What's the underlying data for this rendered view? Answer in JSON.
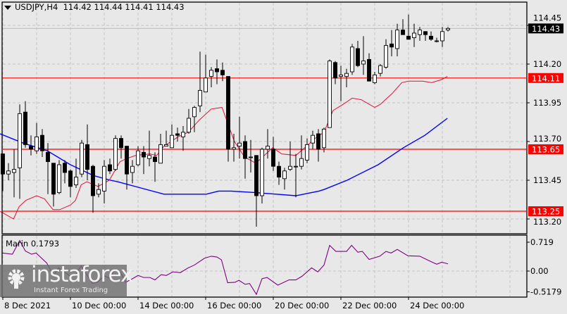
{
  "header": {
    "symbol": "USDJPY,H4",
    "open": "114.42",
    "high": "114.44",
    "low": "114.41",
    "close": "114.43"
  },
  "indicator": {
    "label": "Marin 0.1793"
  },
  "price_axis": {
    "ticks": [
      "114.45",
      "114.20",
      "113.95",
      "113.70",
      "113.45",
      "113.20"
    ],
    "tick_values": [
      114.45,
      114.2,
      113.95,
      113.7,
      113.45,
      113.2
    ],
    "current": {
      "label": "114.43",
      "value": 114.43,
      "color": "#000000"
    },
    "levels": [
      {
        "label": "114.11",
        "value": 114.11,
        "color": "#ff0000"
      },
      {
        "label": "113.65",
        "value": 113.65,
        "color": "#ff0000"
      },
      {
        "label": "113.25",
        "value": 113.25,
        "color": "#ff0000"
      }
    ]
  },
  "sub_axis": {
    "ticks": [
      "0.719",
      "0.00",
      "-0.5179"
    ],
    "tick_values": [
      0.719,
      0,
      -0.5179
    ]
  },
  "time_axis": {
    "labels": [
      "8 Dec 2021",
      "10 Dec 00:00",
      "14 Dec 00:00",
      "16 Dec 00:00",
      "20 Dec 00:00",
      "22 Dec 00:00",
      "24 Dec 00:00"
    ],
    "label_bars": [
      0,
      12,
      24,
      36,
      48,
      60,
      72
    ]
  },
  "watermark": {
    "brand": "instaforex",
    "tagline": "Instant Forex Trading"
  },
  "colors": {
    "background": "#e8e8e8",
    "fast_ma": "#e0103a",
    "slow_ma": "#0000ff",
    "marin": "#800080",
    "level": "#ff0000"
  },
  "chart_data": {
    "type": "candlestick",
    "title": "USDJPY,H4",
    "ylim": [
      113.12,
      114.56
    ],
    "candles": [
      [
        113.62,
        113.62,
        113.38,
        113.49
      ],
      [
        113.49,
        113.56,
        113.45,
        113.51
      ],
      [
        113.5,
        113.65,
        113.34,
        113.52
      ],
      [
        113.53,
        113.94,
        113.33,
        113.88
      ],
      [
        113.89,
        113.96,
        113.66,
        113.68
      ],
      [
        113.67,
        113.74,
        113.61,
        113.65
      ],
      [
        113.64,
        113.82,
        113.62,
        113.73
      ],
      [
        113.74,
        113.78,
        113.6,
        113.64
      ],
      [
        113.63,
        113.69,
        113.36,
        113.57
      ],
      [
        113.56,
        113.56,
        113.28,
        113.36
      ],
      [
        113.37,
        113.58,
        113.36,
        113.55
      ],
      [
        113.56,
        113.58,
        113.43,
        113.5
      ],
      [
        113.51,
        113.52,
        113.34,
        113.41
      ],
      [
        113.42,
        113.59,
        113.4,
        113.47
      ],
      [
        113.49,
        113.71,
        113.47,
        113.69
      ],
      [
        113.68,
        113.81,
        113.45,
        113.52
      ],
      [
        113.54,
        113.55,
        113.24,
        113.35
      ],
      [
        113.36,
        113.43,
        113.34,
        113.39
      ],
      [
        113.38,
        113.58,
        113.3,
        113.54
      ],
      [
        113.55,
        113.59,
        113.49,
        113.51
      ],
      [
        113.52,
        113.74,
        113.51,
        113.72
      ],
      [
        113.72,
        113.74,
        113.59,
        113.66
      ],
      [
        113.67,
        113.67,
        113.39,
        113.49
      ],
      [
        113.5,
        113.58,
        113.43,
        113.54
      ],
      [
        113.55,
        113.67,
        113.54,
        113.64
      ],
      [
        113.63,
        113.67,
        113.49,
        113.6
      ],
      [
        113.59,
        113.77,
        113.54,
        113.61
      ],
      [
        113.6,
        113.63,
        113.44,
        113.57
      ],
      [
        113.56,
        113.75,
        113.56,
        113.68
      ],
      [
        113.67,
        113.77,
        113.67,
        113.68
      ],
      [
        113.66,
        113.81,
        113.66,
        113.74
      ],
      [
        113.75,
        113.79,
        113.7,
        113.74
      ],
      [
        113.73,
        113.8,
        113.64,
        113.76
      ],
      [
        113.76,
        113.91,
        113.75,
        113.85
      ],
      [
        113.86,
        113.93,
        113.76,
        113.92
      ],
      [
        113.93,
        114.28,
        113.89,
        114.03
      ],
      [
        114.02,
        114.26,
        114.02,
        114.11
      ],
      [
        114.12,
        114.18,
        114.05,
        114.16
      ],
      [
        114.17,
        114.23,
        114.07,
        114.15
      ],
      [
        114.16,
        114.21,
        114.09,
        114.13
      ],
      [
        114.12,
        114.12,
        113.57,
        113.65
      ],
      [
        113.65,
        113.75,
        113.57,
        113.66
      ],
      [
        113.67,
        113.86,
        113.59,
        113.69
      ],
      [
        113.7,
        113.74,
        113.46,
        113.59
      ],
      [
        113.6,
        113.71,
        113.5,
        113.6
      ],
      [
        113.61,
        113.61,
        113.15,
        113.35
      ],
      [
        113.35,
        113.66,
        113.3,
        113.65
      ],
      [
        113.65,
        113.78,
        113.59,
        113.67
      ],
      [
        113.65,
        113.73,
        113.51,
        113.54
      ],
      [
        113.54,
        113.57,
        113.42,
        113.47
      ],
      [
        113.46,
        113.53,
        113.39,
        113.51
      ],
      [
        113.52,
        113.7,
        113.51,
        113.54
      ],
      [
        113.54,
        113.62,
        113.34,
        113.54
      ],
      [
        113.54,
        113.74,
        113.52,
        113.59
      ],
      [
        113.58,
        113.72,
        113.56,
        113.68
      ],
      [
        113.69,
        113.77,
        113.65,
        113.74
      ],
      [
        113.75,
        113.78,
        113.57,
        113.65
      ],
      [
        113.66,
        113.79,
        113.63,
        113.78
      ],
      [
        113.79,
        114.23,
        113.79,
        114.22
      ],
      [
        114.21,
        114.22,
        114.07,
        114.11
      ],
      [
        114.12,
        114.19,
        113.96,
        114.13
      ],
      [
        114.12,
        114.17,
        114.05,
        114.14
      ],
      [
        114.15,
        114.33,
        114.13,
        114.31
      ],
      [
        114.3,
        114.35,
        114.18,
        114.19
      ],
      [
        114.2,
        114.38,
        114.13,
        114.22
      ],
      [
        114.23,
        114.27,
        114.09,
        114.09
      ],
      [
        114.08,
        114.15,
        114.07,
        114.13
      ],
      [
        114.14,
        114.2,
        114.12,
        114.19
      ],
      [
        114.18,
        114.36,
        114.17,
        114.32
      ],
      [
        114.33,
        114.42,
        114.25,
        114.31
      ],
      [
        114.3,
        114.46,
        114.25,
        114.42
      ],
      [
        114.42,
        114.49,
        114.39,
        114.39
      ],
      [
        114.38,
        114.52,
        114.36,
        114.36
      ],
      [
        114.37,
        114.46,
        114.31,
        114.4
      ],
      [
        114.39,
        114.44,
        114.35,
        114.42
      ],
      [
        114.41,
        114.41,
        114.35,
        114.39
      ],
      [
        114.38,
        114.41,
        114.35,
        114.36
      ],
      [
        114.35,
        114.37,
        114.34,
        114.35
      ],
      [
        114.35,
        114.44,
        114.31,
        114.41
      ],
      [
        114.42,
        114.44,
        114.41,
        114.43
      ]
    ],
    "fast_ma": [
      [
        -0.5,
        113.25
      ],
      [
        1.9,
        113.2
      ],
      [
        2.9,
        113.28
      ],
      [
        4.1,
        113.32
      ],
      [
        6,
        113.35
      ],
      [
        7.4,
        113.33
      ],
      [
        8.9,
        113.26
      ],
      [
        10.1,
        113.26
      ],
      [
        12,
        113.29
      ],
      [
        12.9,
        113.32
      ],
      [
        13.9,
        113.42
      ],
      [
        14.9,
        113.44
      ],
      [
        16.9,
        113.41
      ],
      [
        18.9,
        113.45
      ],
      [
        20.8,
        113.57
      ],
      [
        22,
        113.59
      ],
      [
        23.6,
        113.61
      ],
      [
        26.1,
        113.62
      ],
      [
        27.3,
        113.61
      ],
      [
        28.6,
        113.67
      ],
      [
        31.1,
        113.73
      ],
      [
        32.9,
        113.76
      ],
      [
        34.9,
        113.84
      ],
      [
        37,
        113.91
      ],
      [
        38.9,
        113.92
      ],
      [
        39.5,
        113.86
      ],
      [
        41.1,
        113.7
      ],
      [
        42.9,
        113.6
      ],
      [
        44.9,
        113.56
      ],
      [
        47.9,
        113.66
      ],
      [
        49.5,
        113.62
      ],
      [
        52,
        113.61
      ],
      [
        53.6,
        113.66
      ],
      [
        55.4,
        113.72
      ],
      [
        57,
        113.76
      ],
      [
        58.6,
        113.9
      ],
      [
        60.4,
        113.94
      ],
      [
        62,
        113.98
      ],
      [
        63.6,
        113.97
      ],
      [
        66,
        113.92
      ],
      [
        67,
        113.94
      ],
      [
        69.1,
        114.01
      ],
      [
        70.8,
        114.08
      ],
      [
        72,
        114.09
      ],
      [
        74.5,
        114.09
      ],
      [
        76.1,
        114.08
      ],
      [
        77.9,
        114.1
      ],
      [
        78.9,
        114.12
      ]
    ],
    "slow_ma": [
      [
        -0.5,
        113.75
      ],
      [
        3.6,
        113.69
      ],
      [
        7.9,
        113.64
      ],
      [
        12,
        113.55
      ],
      [
        16.1,
        113.48
      ],
      [
        19.1,
        113.45
      ],
      [
        20.4,
        113.44
      ],
      [
        24.5,
        113.4
      ],
      [
        28.6,
        113.36
      ],
      [
        32.9,
        113.36
      ],
      [
        36.1,
        113.36
      ],
      [
        38.3,
        113.38
      ],
      [
        40.5,
        113.38
      ],
      [
        44.9,
        113.37
      ],
      [
        52,
        113.35
      ],
      [
        56.1,
        113.38
      ],
      [
        57,
        113.39
      ],
      [
        61.1,
        113.45
      ],
      [
        66.6,
        113.55
      ],
      [
        71.1,
        113.66
      ],
      [
        74.9,
        113.74
      ],
      [
        78.9,
        113.85
      ]
    ],
    "marin": [
      [
        -0.2,
        0.45
      ],
      [
        1.7,
        0.42
      ],
      [
        3.0,
        0.76
      ],
      [
        4.0,
        0.5
      ],
      [
        5.1,
        0.42
      ],
      [
        5.9,
        0.45
      ],
      [
        7.8,
        0.2
      ],
      [
        9.0,
        -0.11
      ],
      [
        9.9,
        0.08
      ],
      [
        12.0,
        -0.13
      ],
      [
        12.9,
        -0.09
      ],
      [
        13.9,
        0.13
      ],
      [
        15.9,
        -0.31
      ],
      [
        16.8,
        -0.28
      ],
      [
        18.0,
        -0.12
      ],
      [
        19.0,
        -0.18
      ],
      [
        19.9,
        0.05
      ],
      [
        20.9,
        -0.04
      ],
      [
        21.8,
        -0.28
      ],
      [
        22.9,
        -0.2
      ],
      [
        24.0,
        -0.11
      ],
      [
        25.0,
        -0.16
      ],
      [
        26.1,
        -0.16
      ],
      [
        27.0,
        -0.22
      ],
      [
        28.1,
        -0.09
      ],
      [
        29.0,
        -0.11
      ],
      [
        30.2,
        -0.02
      ],
      [
        31.5,
        -0.04
      ],
      [
        32.9,
        0.08
      ],
      [
        34.0,
        0.15
      ],
      [
        35.8,
        0.32
      ],
      [
        37.0,
        0.37
      ],
      [
        38.0,
        0.35
      ],
      [
        38.8,
        0.28
      ],
      [
        39.9,
        -0.29
      ],
      [
        41.2,
        -0.28
      ],
      [
        41.9,
        -0.23
      ],
      [
        43.0,
        -0.33
      ],
      [
        43.8,
        -0.31
      ],
      [
        45.0,
        -0.58
      ],
      [
        46.0,
        -0.19
      ],
      [
        46.9,
        -0.16
      ],
      [
        48.8,
        -0.35
      ],
      [
        50.8,
        -0.22
      ],
      [
        52.0,
        -0.22
      ],
      [
        53.1,
        -0.13
      ],
      [
        54.8,
        0.08
      ],
      [
        55.9,
        -0.02
      ],
      [
        57.0,
        0.15
      ],
      [
        58.0,
        0.64
      ],
      [
        59.1,
        0.49
      ],
      [
        61.0,
        0.49
      ],
      [
        61.9,
        0.64
      ],
      [
        63.0,
        0.47
      ],
      [
        63.8,
        0.49
      ],
      [
        65.0,
        0.29
      ],
      [
        66.9,
        0.37
      ],
      [
        68.0,
        0.49
      ],
      [
        68.9,
        0.45
      ],
      [
        70.0,
        0.54
      ],
      [
        71.9,
        0.38
      ],
      [
        74.0,
        0.37
      ],
      [
        75.6,
        0.26
      ],
      [
        77.0,
        0.17
      ],
      [
        77.9,
        0.22
      ],
      [
        79.0,
        0.1793
      ]
    ]
  }
}
